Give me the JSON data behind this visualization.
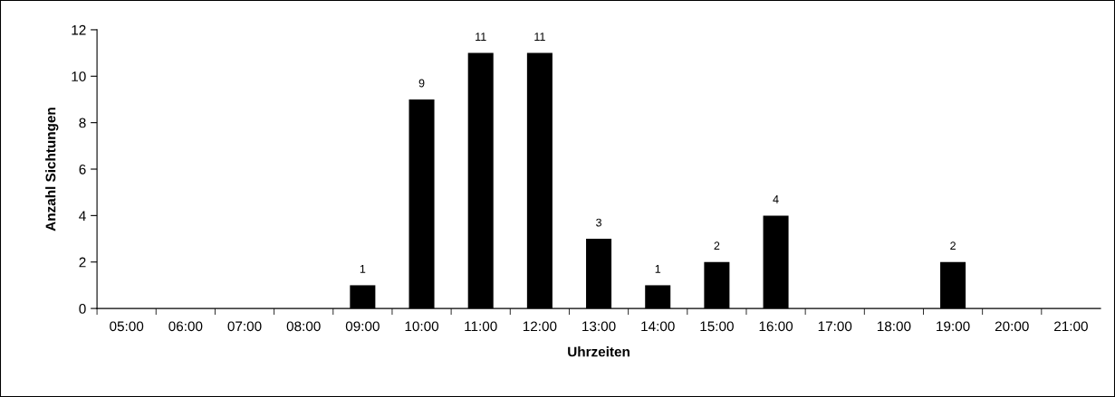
{
  "chart_data": {
    "type": "bar",
    "xlabel": "Uhrzeiten",
    "ylabel": "Anzahl Sichtungen",
    "categories": [
      "05:00",
      "06:00",
      "07:00",
      "08:00",
      "09:00",
      "10:00",
      "11:00",
      "12:00",
      "13:00",
      "14:00",
      "15:00",
      "16:00",
      "17:00",
      "18:00",
      "19:00",
      "20:00",
      "21:00"
    ],
    "values": [
      0,
      0,
      0,
      0,
      1,
      9,
      11,
      11,
      3,
      1,
      2,
      4,
      0,
      0,
      2,
      0,
      0
    ],
    "value_labels": [
      null,
      null,
      null,
      null,
      "1",
      "9",
      "11",
      "11",
      "3",
      "1",
      "2",
      "4",
      null,
      null,
      "2",
      null,
      null
    ],
    "color": "#000000",
    "ylim": [
      0,
      12
    ],
    "yticks": [
      0,
      2,
      4,
      6,
      8,
      10,
      12
    ],
    "grid": false,
    "legend": false
  }
}
